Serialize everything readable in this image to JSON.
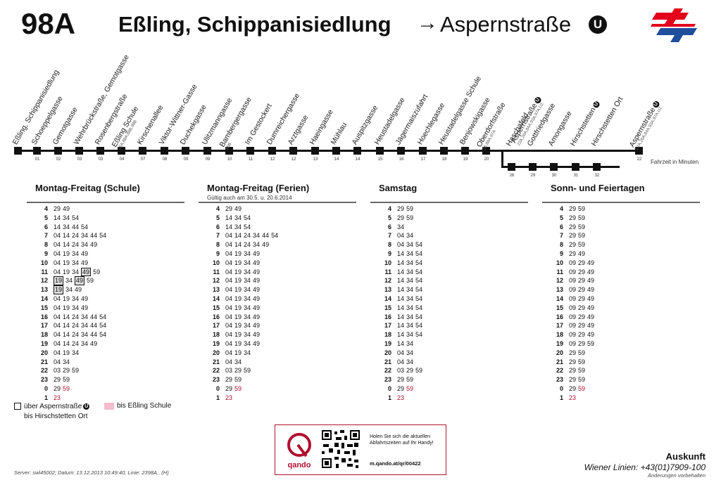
{
  "header": {
    "line": "98A",
    "from": "Eßling, Schippanisiedlung",
    "arrow": "→",
    "to": "Aspernstraße",
    "u_badge": "U"
  },
  "stops": [
    {
      "name": "Eßling, Schippanisiedlung",
      "min": "",
      "sub": ""
    },
    {
      "name": "Schoeppelgasse",
      "min": "01",
      "sub": ""
    },
    {
      "name": "Gemotgasse",
      "min": "02",
      "sub": ""
    },
    {
      "name": "Wehrbrückstraße, Gemotgasse",
      "min": "03",
      "sub": ""
    },
    {
      "name": "Rosenbergstraße",
      "min": "03",
      "sub": ""
    },
    {
      "name": "Eßling Schule",
      "min": "04",
      "sub": "26A,88A,88B,98B"
    },
    {
      "name": "Kirschenallee",
      "min": "07",
      "sub": ""
    },
    {
      "name": "Viktor-Wittner-Gasse",
      "min": "08",
      "sub": ""
    },
    {
      "name": "Duchekgasse",
      "min": "09",
      "sub": ""
    },
    {
      "name": "Ulitzmanngasse",
      "min": "09",
      "sub": ""
    },
    {
      "name": "Bambergergasse",
      "min": "10",
      "sub": "88B"
    },
    {
      "name": "Im Gestockert",
      "min": "11",
      "sub": ""
    },
    {
      "name": "Dumreichergasse",
      "min": "12",
      "sub": ""
    },
    {
      "name": "Arztgasse",
      "min": "12",
      "sub": ""
    },
    {
      "name": "Haeingasse",
      "min": "13",
      "sub": ""
    },
    {
      "name": "Mühlau",
      "min": "14",
      "sub": ""
    },
    {
      "name": "Auspitzgasse",
      "min": "14",
      "sub": ""
    },
    {
      "name": "Heustadelgasse",
      "min": "15",
      "sub": ""
    },
    {
      "name": "Jägermaiszufahrt",
      "min": "16",
      "sub": ""
    },
    {
      "name": "Hoechlegasse",
      "min": "17",
      "sub": ""
    },
    {
      "name": "Heustadelgasse Schule",
      "min": "18",
      "sub": ""
    },
    {
      "name": "Benjowskigasse",
      "min": "19",
      "sub": ""
    },
    {
      "name": "Oberdorfstraße",
      "min": "20",
      "sub": "26,88A,97A"
    },
    {
      "name": "Aspernstraße",
      "min": "",
      "sub": "22A,26A,84A,93A,97A,U2",
      "u": true
    },
    {
      "name": "Aspernstraße",
      "min": "22",
      "sub": "22A,26A,84A,93A,97A,U2",
      "u": true
    }
  ],
  "branch_stops": [
    {
      "name": "Haschafeld",
      "min": "26"
    },
    {
      "name": "Gottfriedgasse",
      "min": "29"
    },
    {
      "name": "Amongasse",
      "min": "30"
    },
    {
      "name": "Hirschstetten",
      "min": "31",
      "u": true
    },
    {
      "name": "Hirschstetten Ort",
      "min": "32"
    }
  ],
  "fahrzeit_label": "Fahrzeit in Minuten",
  "columns": [
    {
      "title": "Montag-Freitag (Schule)",
      "note": "",
      "rows": [
        {
          "h": "4",
          "m": [
            "29",
            "49"
          ]
        },
        {
          "h": "5",
          "m": [
            "14",
            "34",
            "54"
          ]
        },
        {
          "h": "6",
          "m": [
            "14",
            "34",
            "44",
            "54"
          ]
        },
        {
          "h": "7",
          "m": [
            "04",
            "14",
            "24",
            "34",
            "44",
            "54"
          ]
        },
        {
          "h": "8",
          "m": [
            "04",
            "14",
            "24",
            "34",
            "49"
          ]
        },
        {
          "h": "9",
          "m": [
            "04",
            "19",
            "34",
            "49"
          ]
        },
        {
          "h": "10",
          "m": [
            "04",
            "19",
            "34",
            "49"
          ]
        },
        {
          "h": "11",
          "m": [
            "04",
            "19",
            "34",
            "49",
            "59"
          ],
          "boxed": [
            3
          ]
        },
        {
          "h": "12",
          "m": [
            "19",
            "34",
            "49",
            "59"
          ],
          "boxed": [
            0,
            2
          ]
        },
        {
          "h": "13",
          "m": [
            "19",
            "34",
            "49"
          ],
          "boxed": [
            0
          ]
        },
        {
          "h": "14",
          "m": [
            "04",
            "19",
            "34",
            "49"
          ]
        },
        {
          "h": "15",
          "m": [
            "04",
            "19",
            "34",
            "49"
          ]
        },
        {
          "h": "16",
          "m": [
            "04",
            "14",
            "24",
            "34",
            "44",
            "54"
          ]
        },
        {
          "h": "17",
          "m": [
            "04",
            "14",
            "24",
            "34",
            "44",
            "54"
          ]
        },
        {
          "h": "18",
          "m": [
            "04",
            "14",
            "24",
            "34",
            "44",
            "54"
          ]
        },
        {
          "h": "19",
          "m": [
            "04",
            "14",
            "24",
            "34",
            "49"
          ]
        },
        {
          "h": "20",
          "m": [
            "04",
            "19",
            "34"
          ]
        },
        {
          "h": "21",
          "m": [
            "04",
            "34"
          ]
        },
        {
          "h": "22",
          "m": [
            "03",
            "29",
            "59"
          ]
        },
        {
          "h": "23",
          "m": [
            "29",
            "59"
          ]
        },
        {
          "h": "0",
          "m": [
            "29",
            "59"
          ],
          "red": [
            1
          ]
        },
        {
          "h": "1",
          "m": [
            "23"
          ],
          "red": [
            0
          ]
        }
      ]
    },
    {
      "title": "Montag-Freitag (Ferien)",
      "note": "Gültig auch am 30.5. u. 20.6.2014",
      "rows": [
        {
          "h": "4",
          "m": [
            "29",
            "49"
          ]
        },
        {
          "h": "5",
          "m": [
            "14",
            "34",
            "54"
          ]
        },
        {
          "h": "6",
          "m": [
            "14",
            "34",
            "54"
          ]
        },
        {
          "h": "7",
          "m": [
            "04",
            "14",
            "24",
            "34",
            "44",
            "54"
          ]
        },
        {
          "h": "8",
          "m": [
            "04",
            "14",
            "24",
            "34",
            "49"
          ]
        },
        {
          "h": "9",
          "m": [
            "04",
            "19",
            "34",
            "49"
          ]
        },
        {
          "h": "10",
          "m": [
            "04",
            "19",
            "34",
            "49"
          ]
        },
        {
          "h": "11",
          "m": [
            "04",
            "19",
            "34",
            "49"
          ]
        },
        {
          "h": "12",
          "m": [
            "04",
            "19",
            "34",
            "49"
          ]
        },
        {
          "h": "13",
          "m": [
            "04",
            "19",
            "34",
            "49"
          ]
        },
        {
          "h": "14",
          "m": [
            "04",
            "19",
            "34",
            "49"
          ]
        },
        {
          "h": "15",
          "m": [
            "04",
            "19",
            "34",
            "49"
          ]
        },
        {
          "h": "16",
          "m": [
            "04",
            "19",
            "34",
            "49"
          ]
        },
        {
          "h": "17",
          "m": [
            "04",
            "19",
            "34",
            "49"
          ]
        },
        {
          "h": "18",
          "m": [
            "04",
            "19",
            "34",
            "49"
          ]
        },
        {
          "h": "19",
          "m": [
            "04",
            "19",
            "34",
            "49"
          ]
        },
        {
          "h": "20",
          "m": [
            "04",
            "19",
            "34"
          ]
        },
        {
          "h": "21",
          "m": [
            "04",
            "34"
          ]
        },
        {
          "h": "22",
          "m": [
            "03",
            "29",
            "59"
          ]
        },
        {
          "h": "23",
          "m": [
            "29",
            "59"
          ]
        },
        {
          "h": "0",
          "m": [
            "29",
            "59"
          ],
          "red": [
            1
          ]
        },
        {
          "h": "1",
          "m": [
            "23"
          ],
          "red": [
            0
          ]
        }
      ]
    },
    {
      "title": "Samstag",
      "note": "",
      "rows": [
        {
          "h": "4",
          "m": [
            "29",
            "59"
          ]
        },
        {
          "h": "5",
          "m": [
            "29",
            "59"
          ]
        },
        {
          "h": "6",
          "m": [
            "34"
          ]
        },
        {
          "h": "7",
          "m": [
            "04",
            "34"
          ]
        },
        {
          "h": "8",
          "m": [
            "04",
            "34",
            "54"
          ]
        },
        {
          "h": "9",
          "m": [
            "14",
            "34",
            "54"
          ]
        },
        {
          "h": "10",
          "m": [
            "14",
            "34",
            "54"
          ]
        },
        {
          "h": "11",
          "m": [
            "14",
            "34",
            "54"
          ]
        },
        {
          "h": "12",
          "m": [
            "14",
            "34",
            "54"
          ]
        },
        {
          "h": "13",
          "m": [
            "14",
            "34",
            "54"
          ]
        },
        {
          "h": "14",
          "m": [
            "14",
            "34",
            "54"
          ]
        },
        {
          "h": "15",
          "m": [
            "14",
            "34",
            "54"
          ]
        },
        {
          "h": "16",
          "m": [
            "14",
            "34",
            "54"
          ]
        },
        {
          "h": "17",
          "m": [
            "14",
            "34",
            "54"
          ]
        },
        {
          "h": "18",
          "m": [
            "14",
            "34",
            "54"
          ]
        },
        {
          "h": "19",
          "m": [
            "14",
            "34"
          ]
        },
        {
          "h": "20",
          "m": [
            "04",
            "34"
          ]
        },
        {
          "h": "21",
          "m": [
            "04",
            "34"
          ]
        },
        {
          "h": "22",
          "m": [
            "03",
            "29",
            "59"
          ]
        },
        {
          "h": "23",
          "m": [
            "29",
            "59"
          ]
        },
        {
          "h": "0",
          "m": [
            "29",
            "59"
          ],
          "red": [
            1
          ]
        },
        {
          "h": "1",
          "m": [
            "23"
          ],
          "red": [
            0
          ]
        }
      ]
    },
    {
      "title": "Sonn- und Feiertagen",
      "note": "",
      "rows": [
        {
          "h": "4",
          "m": [
            "29",
            "59"
          ]
        },
        {
          "h": "5",
          "m": [
            "29",
            "59"
          ]
        },
        {
          "h": "6",
          "m": [
            "29",
            "59"
          ]
        },
        {
          "h": "7",
          "m": [
            "29",
            "59"
          ]
        },
        {
          "h": "8",
          "m": [
            "29",
            "59"
          ]
        },
        {
          "h": "9",
          "m": [
            "29",
            "49"
          ]
        },
        {
          "h": "10",
          "m": [
            "09",
            "29",
            "49"
          ]
        },
        {
          "h": "11",
          "m": [
            "09",
            "29",
            "49"
          ]
        },
        {
          "h": "12",
          "m": [
            "09",
            "29",
            "49"
          ]
        },
        {
          "h": "13",
          "m": [
            "09",
            "29",
            "49"
          ]
        },
        {
          "h": "14",
          "m": [
            "09",
            "29",
            "49"
          ]
        },
        {
          "h": "15",
          "m": [
            "09",
            "29",
            "49"
          ]
        },
        {
          "h": "16",
          "m": [
            "09",
            "29",
            "49"
          ]
        },
        {
          "h": "17",
          "m": [
            "09",
            "29",
            "49"
          ]
        },
        {
          "h": "18",
          "m": [
            "09",
            "29",
            "49"
          ]
        },
        {
          "h": "19",
          "m": [
            "09",
            "29",
            "59"
          ]
        },
        {
          "h": "20",
          "m": [
            "29",
            "59"
          ]
        },
        {
          "h": "21",
          "m": [
            "29",
            "59"
          ]
        },
        {
          "h": "22",
          "m": [
            "29",
            "59"
          ]
        },
        {
          "h": "23",
          "m": [
            "29",
            "59"
          ]
        },
        {
          "h": "0",
          "m": [
            "29",
            "59"
          ],
          "red": [
            1
          ]
        },
        {
          "h": "1",
          "m": [
            "23"
          ],
          "red": [
            0
          ]
        }
      ]
    }
  ],
  "legend": {
    "box_text_1": "über Aspernstraße",
    "box_text_2": "bis Hirschstetten Ort",
    "pink_text": "bis Eßling Schule"
  },
  "qando": {
    "brand": "qando",
    "text": "Holen Sie sich die aktuellen Abfahrtszeiten auf Ihr Handy!",
    "url": "m.qando.at/qr/00422"
  },
  "footer": {
    "server": "Server: swl45002;  Datum: 13.12.2013 10:49:40;  Linie: 2398A_ (H)",
    "auskunft_title": "Auskunft",
    "auskunft_line": "Wiener Linien: +43(01)7909-100",
    "auskunft_note": "Änderungen vorbehalten"
  },
  "colors": {
    "accent_red": "#b01030",
    "logo_red": "#e2001a",
    "logo_blue": "#1f4e9c",
    "pink": "#f4bccc"
  }
}
